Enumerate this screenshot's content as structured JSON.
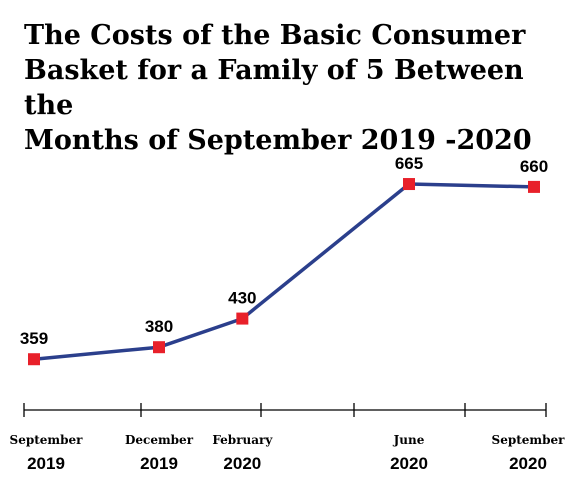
{
  "chart_data": {
    "type": "line",
    "title_lines": [
      "The Costs of the Basic Consumer",
      "Basket for a Family of 5 Between the",
      "Months of September 2019 -2020"
    ],
    "categories": [
      {
        "month": "September",
        "year": "2019"
      },
      {
        "month": "December",
        "year": "2019"
      },
      {
        "month": "February",
        "year": "2020"
      },
      {
        "month": "June",
        "year": "2020"
      },
      {
        "month": "September",
        "year": "2020"
      }
    ],
    "x": [
      "2019-09",
      "2019-12",
      "2020-02",
      "2020-06",
      "2020-09"
    ],
    "values": [
      359,
      380,
      430,
      665,
      660
    ],
    "data_labels": [
      "359",
      "380",
      "430",
      "665",
      "660"
    ],
    "ylim": [
      300,
      700
    ],
    "grid": false,
    "legend": "none",
    "colors": {
      "line": "#2b3f8c",
      "marker": "#e8202a",
      "text": "#000000"
    }
  }
}
